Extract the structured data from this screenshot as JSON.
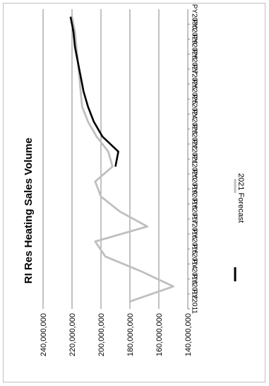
{
  "chart_data": {
    "type": "line",
    "title": "RI Res Heating Sales Volume",
    "xlabel": "",
    "ylabel": "",
    "rotated": "90deg-clockwise",
    "categories": [
      "PY2011",
      "PY2012",
      "PY2013",
      "PY2014",
      "PY2015",
      "PY2016",
      "PY2017",
      "PY2018",
      "PY2019",
      "PY2020",
      "PY2021",
      "PY2022",
      "PY2023",
      "PY2024",
      "PY2025",
      "PY2026",
      "PY2027",
      "PY2028",
      "PY2029",
      "PY2030"
    ],
    "ylim": [
      140000000,
      240000000
    ],
    "y_ticks": [
      140000000,
      160000000,
      180000000,
      200000000,
      220000000,
      240000000
    ],
    "y_tick_labels": [
      "140,000,000",
      "160,000,000",
      "180,000,000",
      "200,000,000",
      "220,000,000",
      "240,000,000"
    ],
    "grid": true,
    "legend_position": "bottom",
    "series": [
      {
        "name": "",
        "color": "#000000",
        "values": [
          null,
          null,
          null,
          null,
          null,
          null,
          null,
          null,
          null,
          190000000,
          188000000,
          199000000,
          205000000,
          209000000,
          212000000,
          214000000,
          216000000,
          218000000,
          219000000,
          221000000
        ]
      },
      {
        "name": "2021 Forecast",
        "color": "#bfbfbf",
        "values": [
          180000000,
          150000000,
          172000000,
          197000000,
          204000000,
          168000000,
          187000000,
          200000000,
          204000000,
          192000000,
          195000000,
          203000000,
          209000000,
          213000000,
          214000000,
          215000000,
          216000000,
          217000000,
          218000000,
          220000000
        ]
      }
    ]
  }
}
